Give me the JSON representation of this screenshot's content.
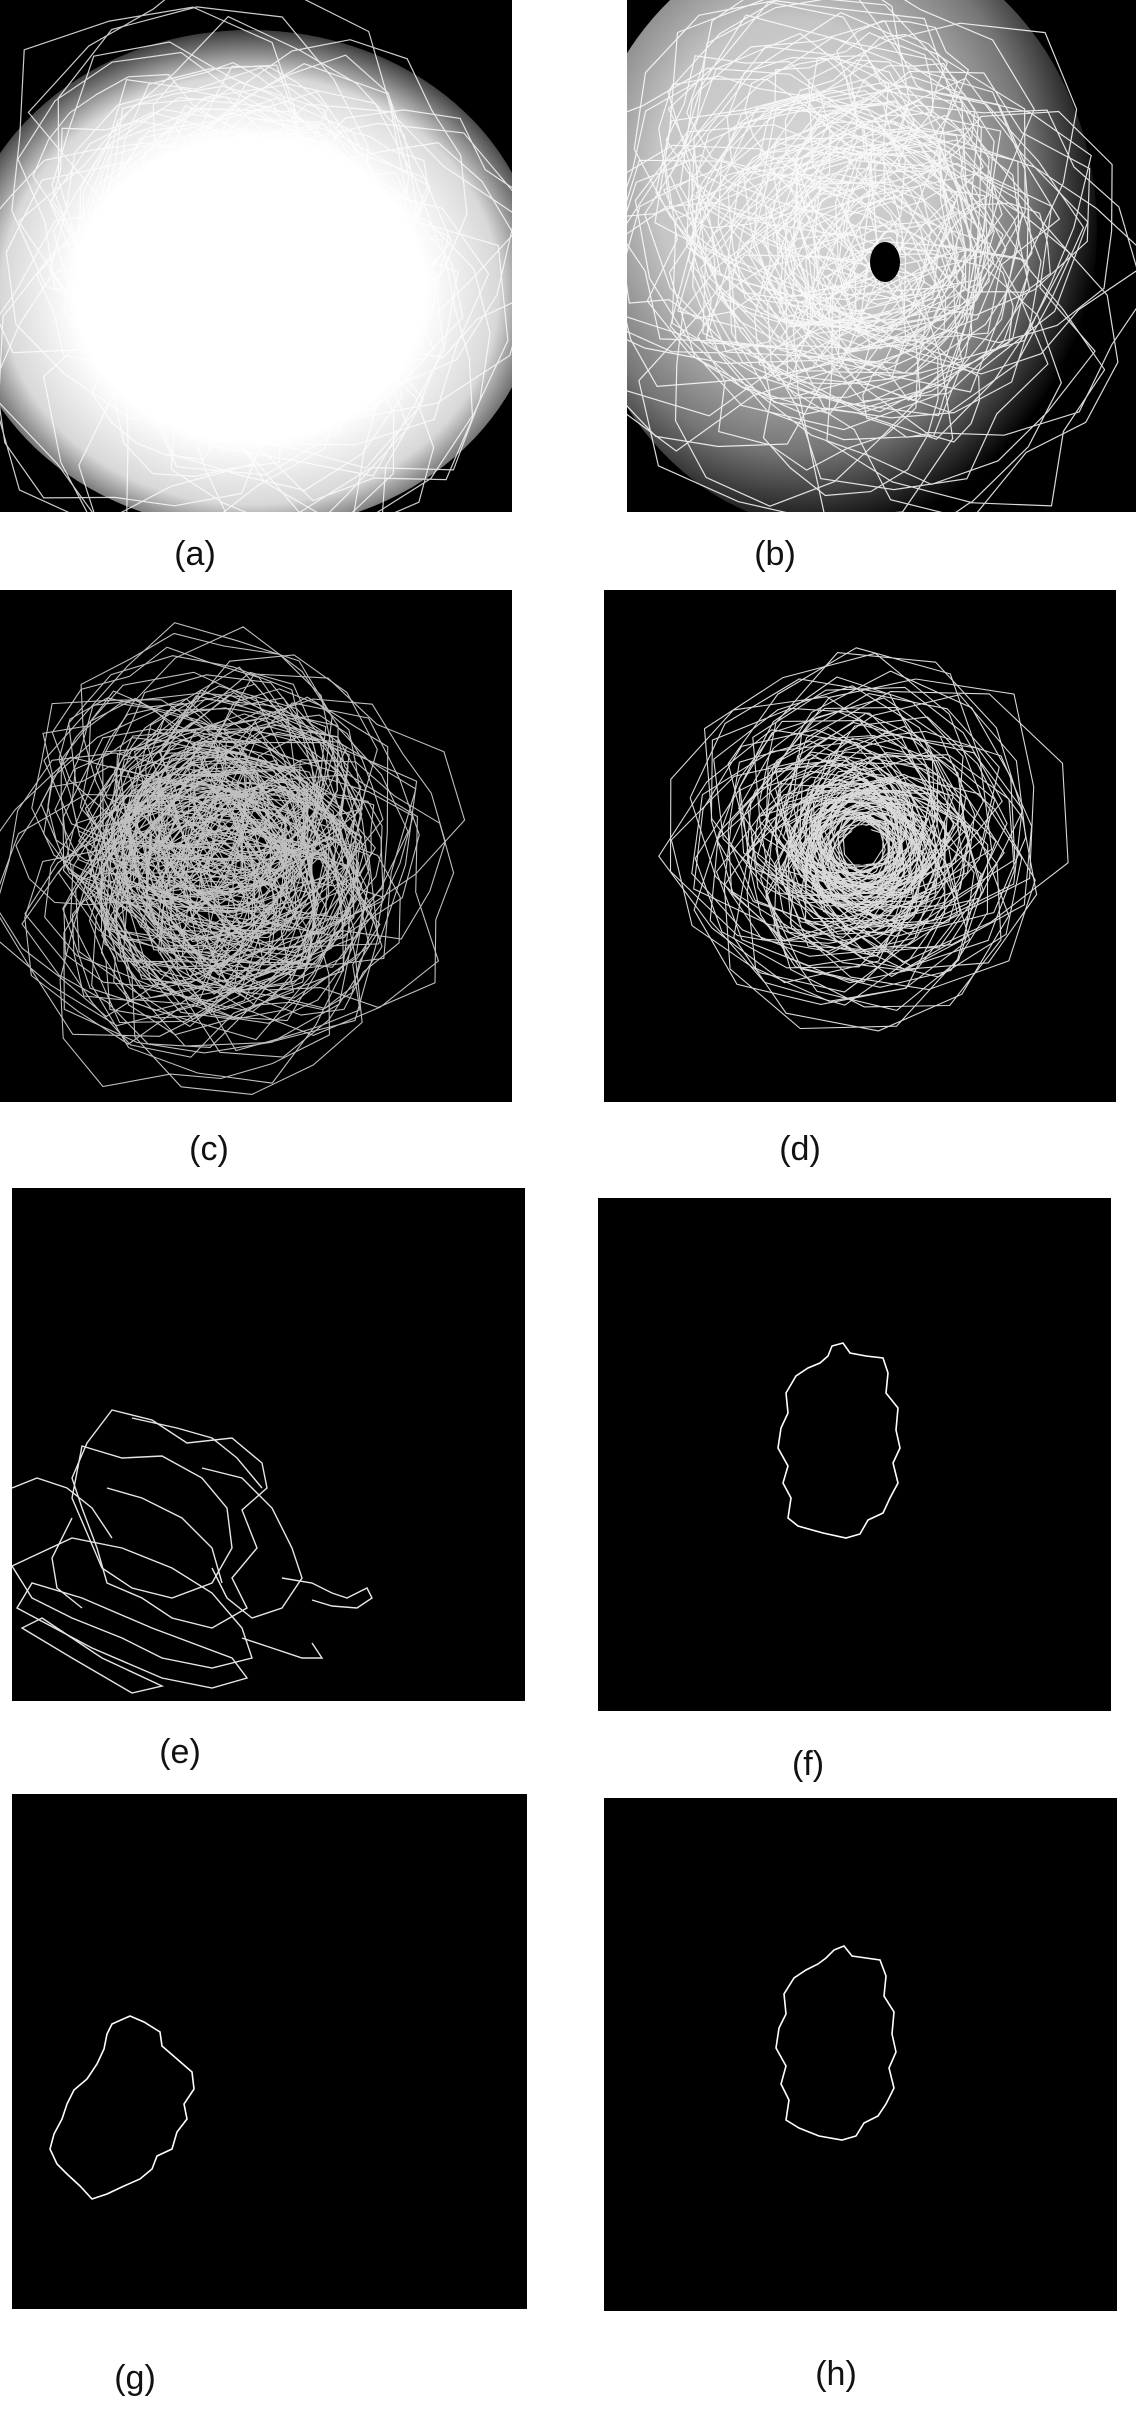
{
  "figure": {
    "panels": [
      {
        "id": "a",
        "label": "(a)"
      },
      {
        "id": "b",
        "label": "(b)"
      },
      {
        "id": "c",
        "label": "(c)"
      },
      {
        "id": "d",
        "label": "(d)"
      },
      {
        "id": "e",
        "label": "(e)"
      },
      {
        "id": "f",
        "label": "(f)"
      },
      {
        "id": "g",
        "label": "(g)"
      },
      {
        "id": "h",
        "label": "(h)"
      }
    ]
  },
  "colors": {
    "panel_background": "#000000",
    "trace": "#ffffff",
    "page_background": "#ffffff",
    "label_text": "#111111"
  }
}
